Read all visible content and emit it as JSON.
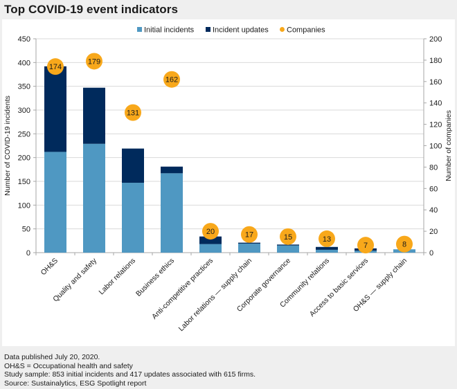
{
  "title": "Top COVID-19 event indicators",
  "notes": [
    "Data published July 20, 2020.",
    "OH&S = Occupational health and safety",
    "Study sample: 853 initial incidents and 417 updates associated with 615 firms.",
    "Source: Sustainalytics, ESG Spotlight report"
  ],
  "colors": {
    "initial": "#4f98c2",
    "updates": "#002a5c",
    "companies": "#f8a81b",
    "grid": "#d9d9d9",
    "axis": "#a6a6a6"
  },
  "chart_data": {
    "type": "bar",
    "stacked": true,
    "title": "Top COVID-19 event indicators",
    "categories": [
      "OH&S",
      "Quality and safety",
      "Labor relations",
      "Business ethics",
      "Anti-competitive practices",
      "Labor relations — supply chain",
      "Corporate governance",
      "Community relations",
      "Access to basic services",
      "OH&S — supply chain"
    ],
    "series": [
      {
        "name": "Initial incidents",
        "axis": "left",
        "kind": "bar",
        "values": [
          212,
          229,
          147,
          167,
          18,
          19,
          15,
          6,
          4,
          7
        ]
      },
      {
        "name": "Incident updates",
        "axis": "left",
        "kind": "bar",
        "values": [
          180,
          118,
          72,
          14,
          16,
          2,
          2,
          6,
          5,
          0
        ]
      },
      {
        "name": "Companies",
        "axis": "right",
        "kind": "bubble",
        "values": [
          174,
          179,
          131,
          162,
          20,
          17,
          15,
          13,
          7,
          8
        ]
      }
    ],
    "ylabel": "Number of COVID-19 incidents",
    "ylabel_right": "Number of companies",
    "ylim": [
      0,
      450
    ],
    "ylim_right": [
      0,
      200
    ],
    "yticks": [
      0,
      50,
      100,
      150,
      200,
      250,
      300,
      350,
      400,
      450
    ],
    "yticks_right": [
      0,
      20,
      40,
      60,
      80,
      100,
      120,
      140,
      160,
      180,
      200
    ],
    "grid": true,
    "legend_position": "top-center",
    "legend": [
      "Initial incidents",
      "Incident updates",
      "Companies"
    ]
  }
}
